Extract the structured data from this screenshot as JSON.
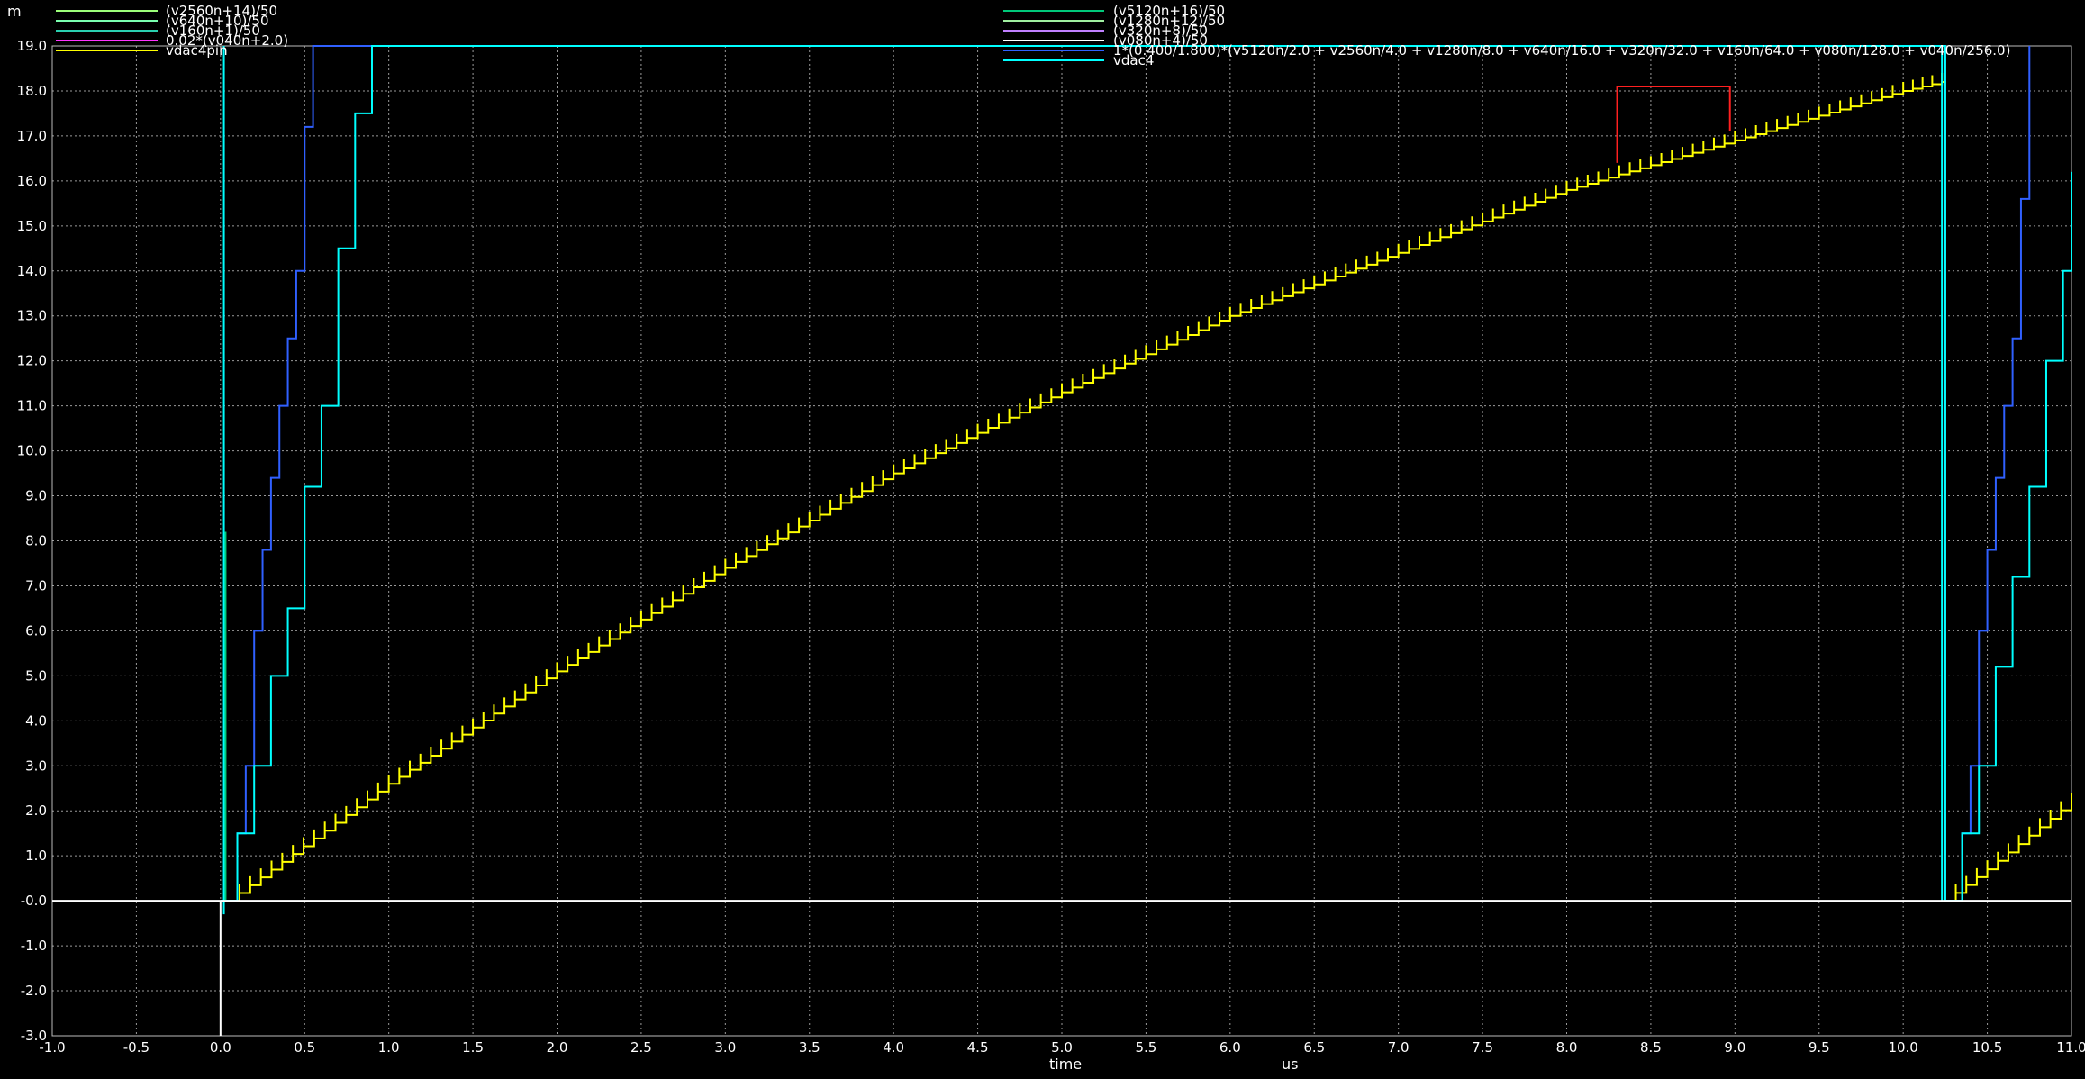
{
  "chart_data": {
    "type": "line",
    "y_unit_label": "m",
    "xlabel": "time",
    "x_unit_label": "us",
    "xlim": [
      -1.0,
      11.0
    ],
    "ylim": [
      -3.0,
      19.0
    ],
    "x_ticks": [
      "-1.0",
      "-0.5",
      "0.0",
      "0.5",
      "1.0",
      "1.5",
      "2.0",
      "2.5",
      "3.0",
      "3.5",
      "4.0",
      "4.5",
      "5.0",
      "5.5",
      "6.0",
      "6.5",
      "7.0",
      "7.5",
      "8.0",
      "8.5",
      "9.0",
      "9.5",
      "10.0",
      "10.5",
      "11.0"
    ],
    "y_ticks": [
      "-3.0",
      "-2.0",
      "-1.0",
      "-0.0",
      "1.0",
      "2.0",
      "3.0",
      "4.0",
      "5.0",
      "6.0",
      "7.0",
      "8.0",
      "9.0",
      "10.0",
      "11.0",
      "12.0",
      "13.0",
      "14.0",
      "15.0",
      "16.0",
      "17.0",
      "18.0",
      "19.0"
    ],
    "grid": true,
    "legend_left": [
      {
        "name": "(v2560n+14)/50",
        "color": "#9cff7a"
      },
      {
        "name": "(v640n+10)/50",
        "color": "#7affb0"
      },
      {
        "name": "(v160n+1)/50",
        "color": "#2ad0b0"
      },
      {
        "name": "0.02*(v040n+2.0)",
        "color": "#ff33ff"
      },
      {
        "name": "vdac4pin",
        "color": "#ffff00"
      }
    ],
    "legend_right": [
      {
        "name": "(v5120n+16)/50",
        "color": "#00c87a"
      },
      {
        "name": "(v1280n+12)/50",
        "color": "#a0f0a0"
      },
      {
        "name": "(v320n+8)/50",
        "color": "#c080ff"
      },
      {
        "name": "(v080n+4)/50",
        "color": "#ffffff"
      },
      {
        "name": "1*(0.400/1.800)*(v5120n/2.0 + v2560n/4.0 + v1280n/8.0 + v640n/16.0 + v320n/32.0 + v160n/64.0 + v080n/128.0 + v040n/256.0)",
        "color": "#3060ff"
      },
      {
        "name": "vdac4",
        "color": "#00ffff"
      }
    ],
    "series": [
      {
        "name": "vdac4pin",
        "color": "#ffff00",
        "x": [
          0.05,
          1.0,
          2.0,
          3.0,
          4.0,
          5.0,
          6.0,
          7.0,
          8.0,
          9.0,
          10.0,
          10.23,
          10.25,
          10.5,
          11.0
        ],
        "y": [
          0.0,
          2.6,
          5.1,
          7.4,
          9.5,
          11.3,
          13.0,
          14.4,
          15.8,
          16.9,
          18.0,
          18.2,
          0.0,
          0.7,
          2.2
        ]
      },
      {
        "name": "1*(0.400/1.800)*(v5120n/2.0 + v2560n/4.0 + v1280n/8.0 + v640n/16.0 + v320n/32.0 + v160n/64.0 + v080n/128.0 + v040n/256.0)",
        "color": "#3060ff",
        "x": [
          0.0,
          0.1,
          0.15,
          0.2,
          0.25,
          0.3,
          0.35,
          0.4,
          0.45,
          0.5,
          0.55,
          10.25,
          10.35,
          10.4,
          10.45,
          10.5,
          10.55,
          10.6,
          10.65,
          10.7,
          10.75
        ],
        "y": [
          0.0,
          1.5,
          3.0,
          6.0,
          7.8,
          9.4,
          11.0,
          12.5,
          14.0,
          17.2,
          19.0,
          0.0,
          1.5,
          3.0,
          6.0,
          7.8,
          9.4,
          11.0,
          12.5,
          15.6,
          19.0
        ]
      },
      {
        "name": "vdac4",
        "color": "#00ffff",
        "x": [
          0.0,
          0.1,
          0.2,
          0.3,
          0.4,
          0.5,
          0.6,
          0.7,
          0.8,
          0.9,
          10.25,
          10.35,
          10.45,
          10.55,
          10.65,
          10.75,
          10.85,
          10.95,
          11.0
        ],
        "y": [
          0.0,
          1.5,
          3.0,
          5.0,
          6.5,
          9.2,
          11.0,
          14.5,
          17.5,
          19.0,
          0.0,
          1.5,
          3.0,
          5.2,
          7.2,
          9.2,
          12.0,
          14.0,
          16.2
        ]
      }
    ],
    "annotations": [
      {
        "type": "line",
        "name": "cyan-vertical-start",
        "color": "#00ffff",
        "x": [
          0.02,
          0.02
        ],
        "y": [
          -0.3,
          19.0
        ]
      },
      {
        "type": "line",
        "name": "green-spike-start",
        "color": "#00c87a",
        "x": [
          0.03,
          0.03
        ],
        "y": [
          0.0,
          8.2
        ]
      },
      {
        "type": "line",
        "name": "cyan-vertical-end",
        "color": "#00ffff",
        "x": [
          10.23,
          10.23
        ],
        "y": [
          0.0,
          19.0
        ]
      },
      {
        "type": "line",
        "name": "white-baseline",
        "color": "#ffffff",
        "x": [
          -1.0,
          11.0
        ],
        "y": [
          0.0,
          0.0
        ]
      },
      {
        "type": "line",
        "name": "white-vertical",
        "color": "#ffffff",
        "x": [
          0.0,
          0.0
        ],
        "y": [
          -3.0,
          0.0
        ]
      },
      {
        "type": "bracket",
        "name": "red-marker",
        "color": "#ff2020",
        "x": [
          8.3,
          8.3,
          8.97,
          8.97
        ],
        "y": [
          16.4,
          18.1,
          18.1,
          17.1
        ]
      }
    ]
  }
}
